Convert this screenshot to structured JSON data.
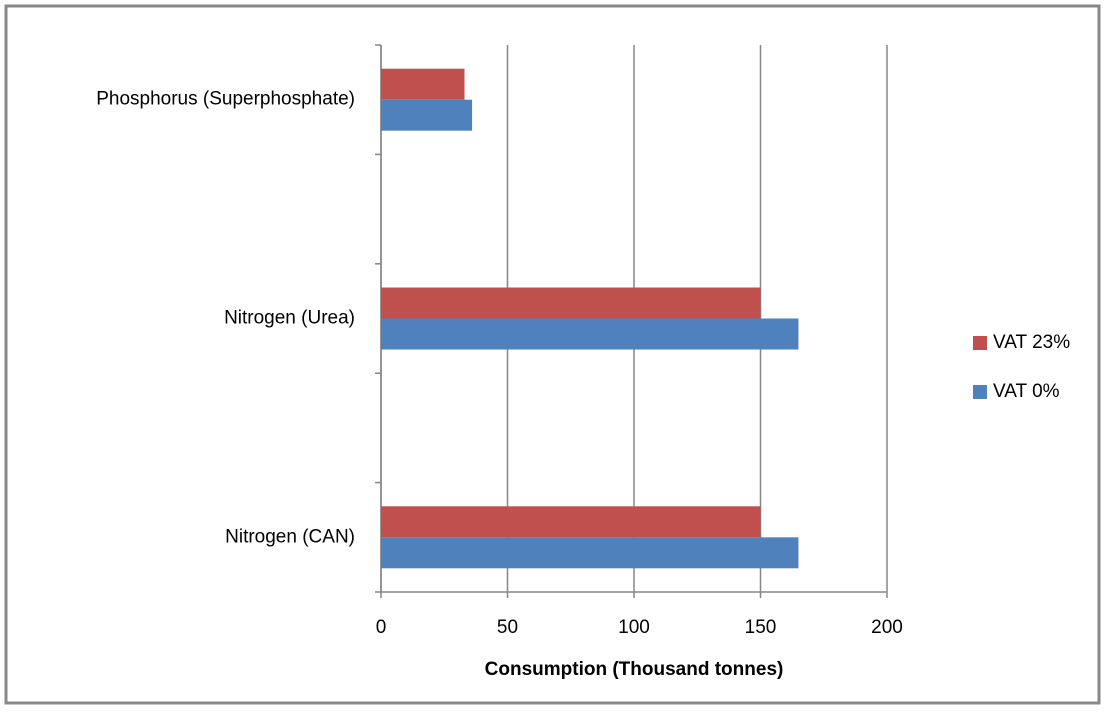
{
  "chart_data": {
    "type": "hbar",
    "categories": [
      "Nitrogen (CAN)",
      null,
      "Nitrogen (Urea)",
      null,
      "Phosphorus (Superphosphate)"
    ],
    "series": [
      {
        "name": "VAT 0%",
        "color": "#4f81bd",
        "values": [
          165,
          null,
          165,
          null,
          36
        ]
      },
      {
        "name": "VAT 23%",
        "color": "#c0504d",
        "values": [
          150,
          null,
          150,
          null,
          33
        ]
      }
    ],
    "xlabel": "Consumption (Thousand tonnes)",
    "xlim": [
      0,
      200
    ],
    "xticks": [
      0,
      50,
      100,
      150,
      200
    ],
    "grid": true,
    "legend": "right"
  }
}
